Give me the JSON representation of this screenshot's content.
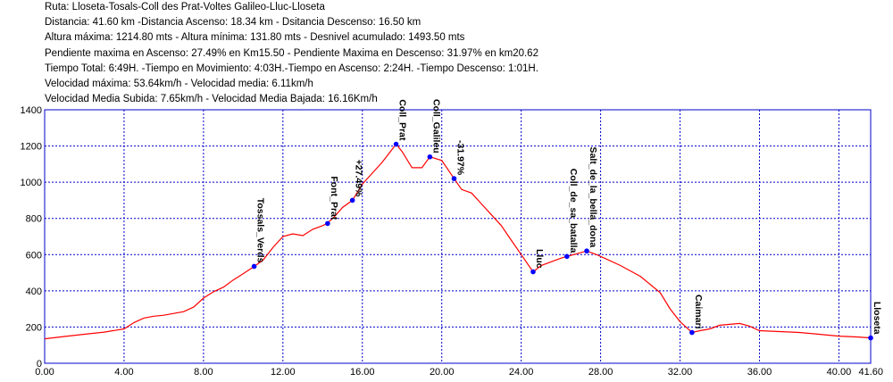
{
  "header": {
    "lines": [
      "Ruta: Lloseta-Tosals-Coll des Prat-Voltes Galileo-Lluc-Lloseta",
      "Distancia: 41.60 km -Distancia Ascenso: 18.34 km - Dsitancia Descenso: 16.50 km",
      "Altura máxima: 1214.80 mts - Altura mínima: 131.80 mts - Desnivel acumulado: 1493.50 mts",
      "Pendiente maxima en Ascenso: 27.49% en Km15.50 - Pendiente Maxima en Descenso: 31.97% en km20.62",
      "Tiempo Total: 6:49H. -Tiempo en Movimiento: 4:03H.-Tiempo en Ascenso: 2:24H. -Tiempo Descenso: 1:01H.",
      "Velocidad máxima: 53.64km/h - Velocidad media: 6.11km/h",
      "Velocidad Media Subida: 7.65km/h - Velocidad Media Bajada: 16.16Km/h"
    ]
  },
  "chart_data": {
    "type": "line",
    "xlim": [
      0,
      41.6
    ],
    "ylim": [
      0,
      1400
    ],
    "grid": true,
    "x_ticks": [
      "0.00",
      "4.00",
      "8.00",
      "12.00",
      "16.00",
      "20.00",
      "24.00",
      "28.00",
      "32.00",
      "36.00",
      "40.00",
      "41.60"
    ],
    "x_tick_values": [
      0,
      4,
      8,
      12,
      16,
      20,
      24,
      28,
      32,
      36,
      40,
      41.6
    ],
    "y_ticks": [
      "0",
      "200",
      "400",
      "600",
      "800",
      "1000",
      "1200",
      "1400"
    ],
    "y_tick_values": [
      0,
      200,
      400,
      600,
      800,
      1000,
      1200,
      1400
    ],
    "colors": {
      "line": "#ff0000",
      "marker": "#0000ff",
      "grid": "#0000cc",
      "border": "#0000cc"
    },
    "series": [
      {
        "x": [
          0,
          1,
          2,
          3,
          4,
          4.5,
          5,
          5.5,
          6,
          7,
          7.5,
          8,
          8.5,
          9,
          9.5,
          10,
          10.55,
          11,
          11.5,
          12,
          12.5,
          13,
          13.5,
          14,
          14.2,
          14.6,
          15,
          15.5,
          16,
          16.5,
          17,
          17.7,
          18,
          18.5,
          19,
          19.4,
          20,
          20.62,
          21,
          21.5,
          22,
          22.5,
          23,
          23.5,
          24,
          24.6,
          25,
          25.5,
          26,
          26.3,
          26.8,
          27.3,
          27.8,
          28.2,
          29,
          30,
          31,
          31.5,
          32,
          32.6,
          33,
          33.5,
          34,
          34.5,
          35,
          35.5,
          36,
          37,
          38,
          39,
          40,
          41,
          41.6
        ],
        "y": [
          135,
          148,
          160,
          172,
          190,
          225,
          250,
          260,
          265,
          285,
          310,
          360,
          395,
          420,
          460,
          495,
          535,
          570,
          640,
          700,
          715,
          705,
          740,
          760,
          770,
          810,
          860,
          900,
          990,
          1050,
          1110,
          1210,
          1170,
          1080,
          1080,
          1140,
          1120,
          1020,
          960,
          940,
          880,
          820,
          760,
          680,
          600,
          505,
          540,
          560,
          580,
          590,
          605,
          620,
          600,
          580,
          540,
          480,
          390,
          300,
          230,
          170,
          180,
          190,
          210,
          215,
          220,
          205,
          180,
          175,
          170,
          160,
          150,
          145,
          140
        ]
      }
    ],
    "waypoints": [
      {
        "x": 10.55,
        "y": 535,
        "label": "Tossals_Verds"
      },
      {
        "x": 14.25,
        "y": 772,
        "label": "Font_Prat"
      },
      {
        "x": 15.5,
        "y": 900,
        "label": "+27.49%"
      },
      {
        "x": 17.7,
        "y": 1210,
        "label": "Coll_Prat"
      },
      {
        "x": 19.4,
        "y": 1140,
        "label": "Coll_Galileu"
      },
      {
        "x": 20.62,
        "y": 1020,
        "label": "-31.97%"
      },
      {
        "x": 24.6,
        "y": 505,
        "label": "Lluc"
      },
      {
        "x": 26.3,
        "y": 590,
        "label": "Coll_de_sa_batalla"
      },
      {
        "x": 27.3,
        "y": 620,
        "label": "Salt_de_la_bella_dona"
      },
      {
        "x": 32.6,
        "y": 170,
        "label": "Caimari"
      },
      {
        "x": 41.6,
        "y": 140,
        "label": "Lloseta"
      }
    ]
  }
}
